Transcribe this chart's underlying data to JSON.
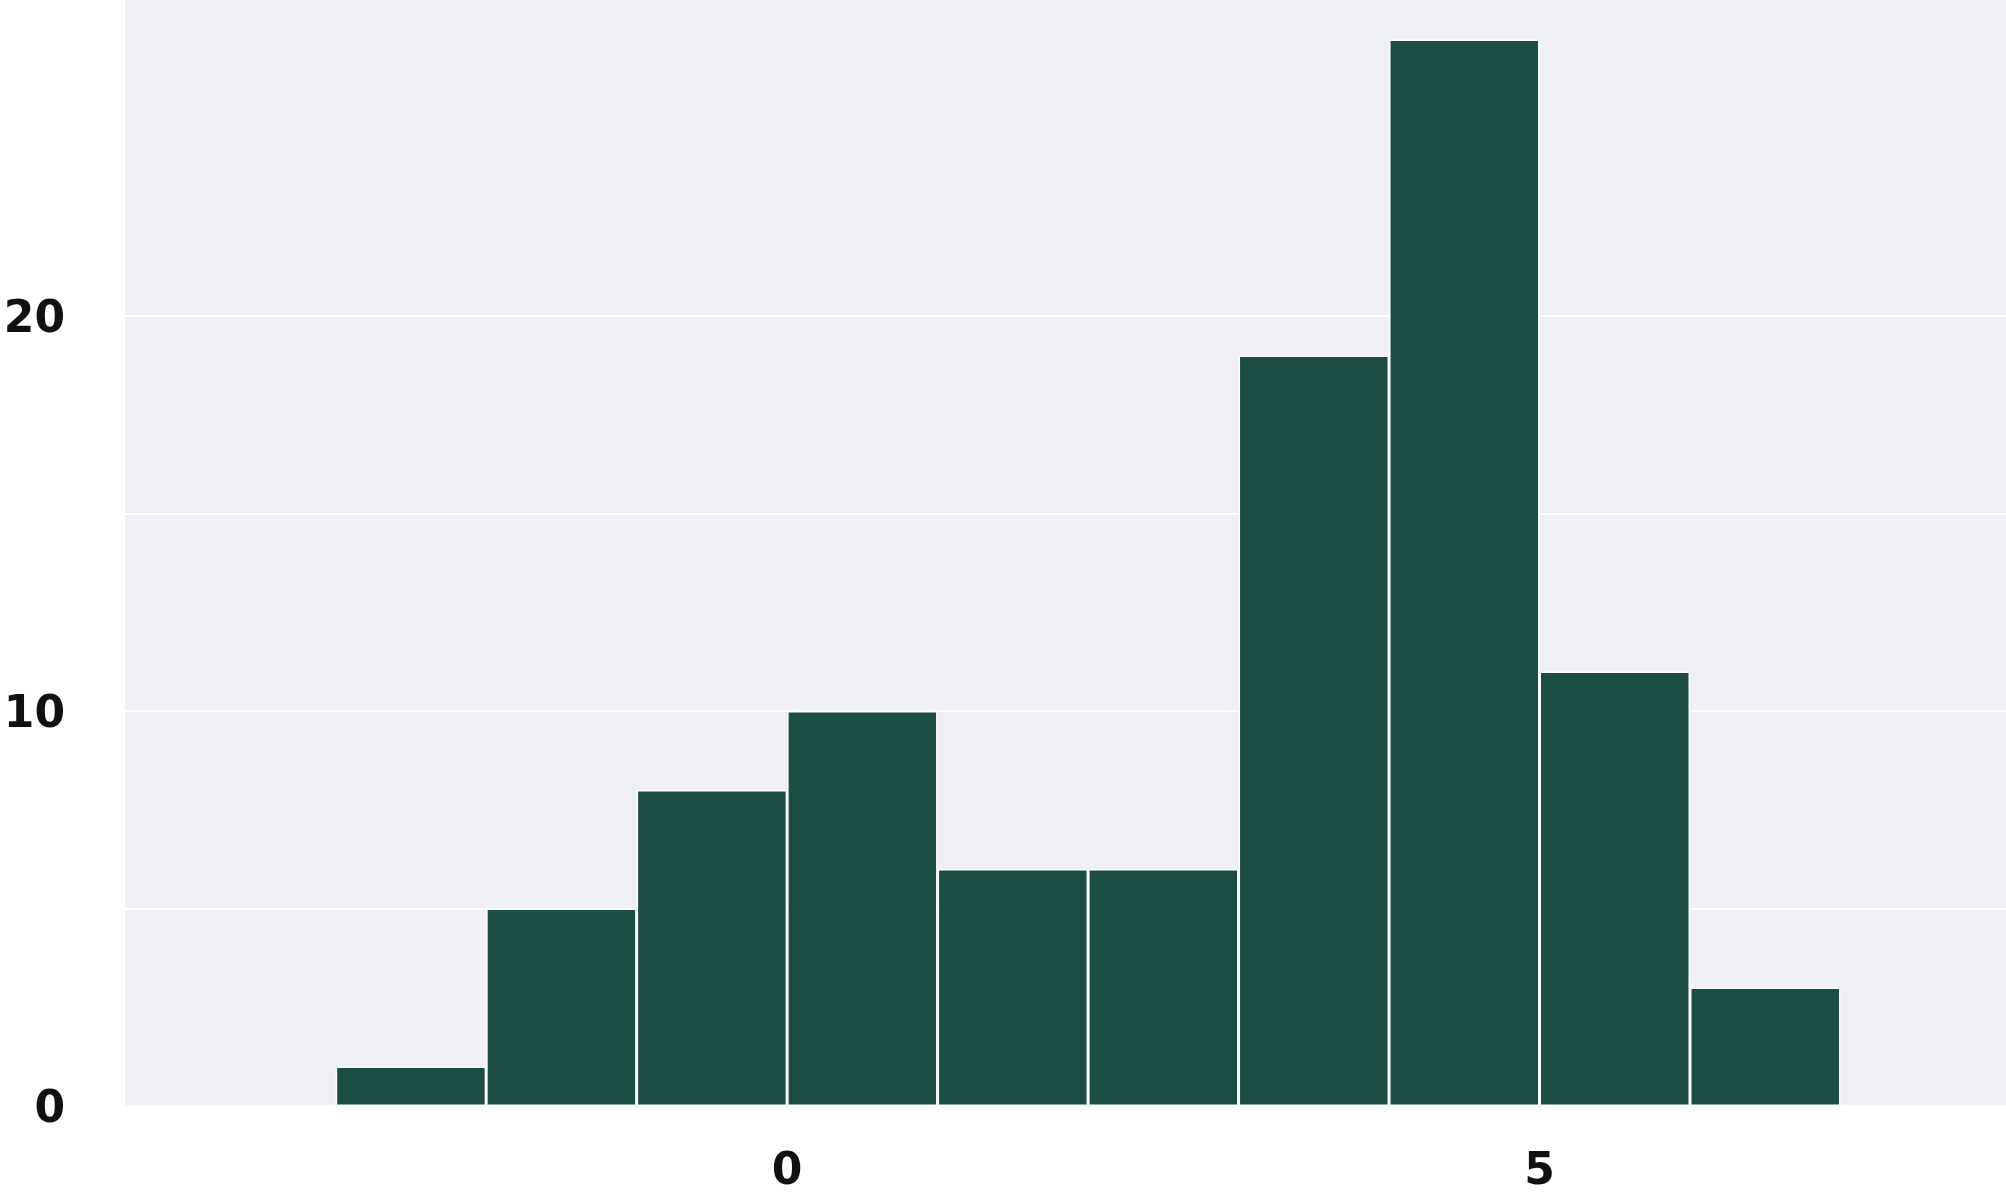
{
  "chart_data": {
    "type": "histogram",
    "bins": [
      -3,
      -2,
      -1,
      0,
      1,
      2,
      3,
      4,
      5,
      6,
      7
    ],
    "values": [
      1,
      5,
      8,
      10,
      6,
      6,
      19,
      27,
      11,
      3
    ],
    "color": "#1b4d44",
    "xlim": [
      -4.4,
      8.1
    ],
    "xticks": [
      0,
      5
    ],
    "ylim": [
      0,
      28
    ],
    "yticks": [
      0,
      {
        "value": 5,
        "label": null
      },
      10,
      {
        "value": 15,
        "label": null
      },
      20
    ],
    "grid": "y"
  }
}
